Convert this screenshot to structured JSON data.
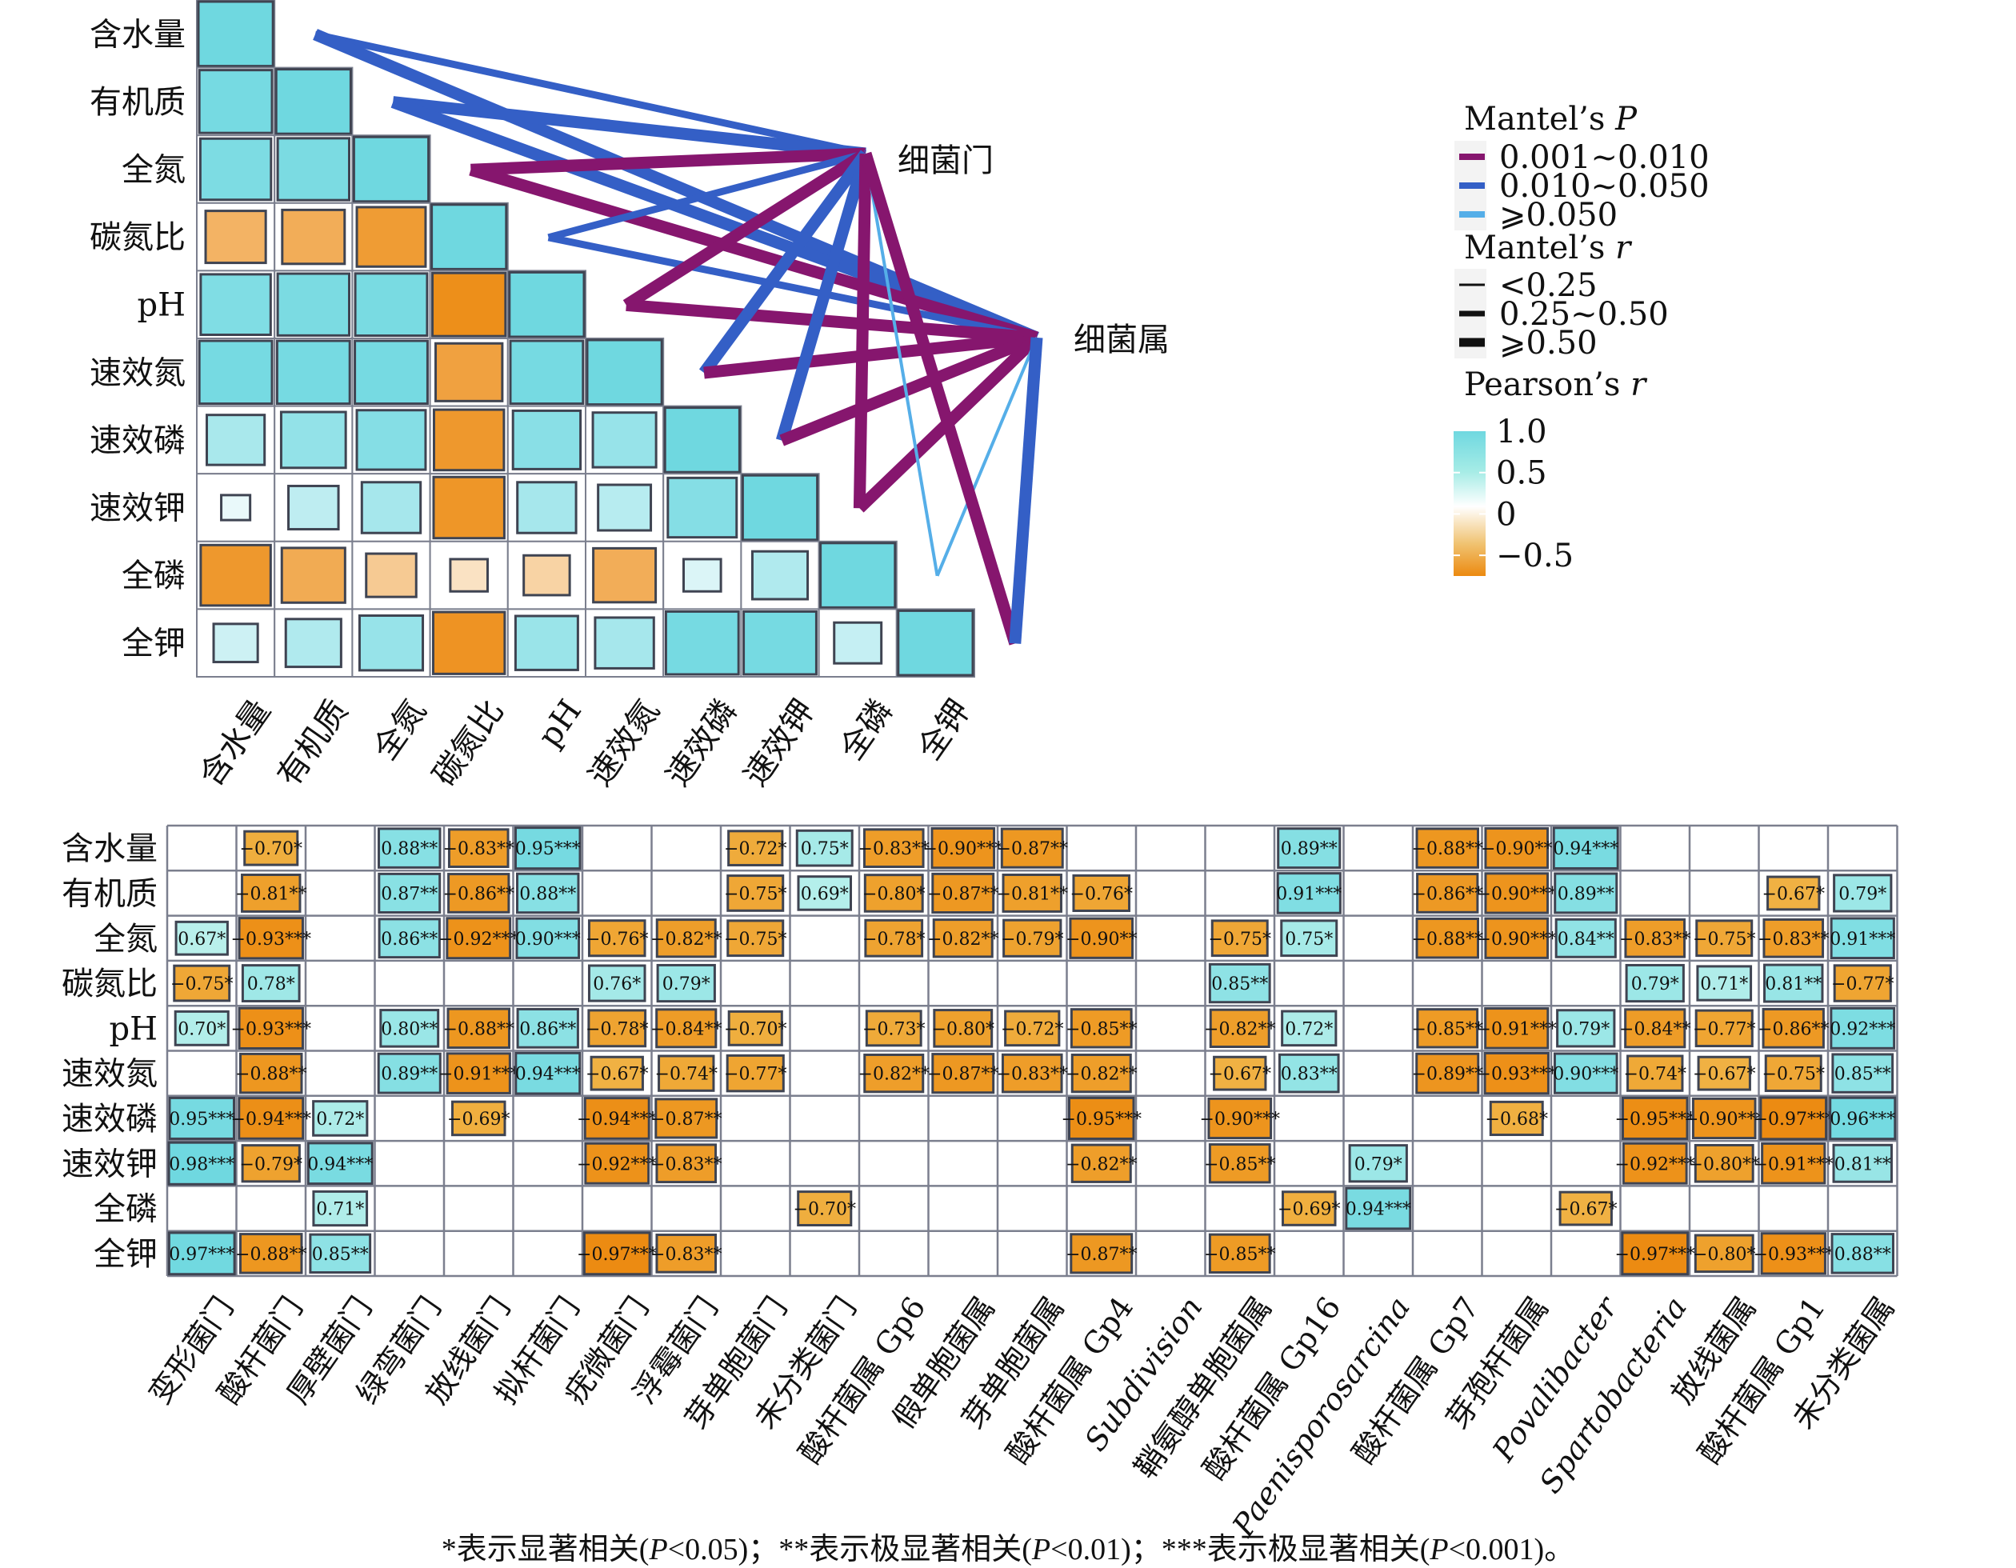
{
  "chart_data": [
    {
      "type": "heatmap",
      "subtype": "mantel-test-correlation-triangle",
      "variables": [
        "含水量",
        "有机质",
        "全氮",
        "碳氮比",
        "pH",
        "速效氮",
        "速效磷",
        "速效钾",
        "全磷",
        "全钾"
      ],
      "pearson_lower_triangle": [
        [
          1.0
        ],
        [
          0.95,
          1.0
        ],
        [
          0.9,
          0.92,
          1.0
        ],
        [
          -0.65,
          -0.7,
          -0.85,
          1.0
        ],
        [
          0.88,
          0.92,
          0.93,
          -0.96,
          1.0
        ],
        [
          0.95,
          0.95,
          0.95,
          -0.8,
          0.95,
          1.0
        ],
        [
          0.6,
          0.75,
          0.85,
          -0.88,
          0.82,
          0.72,
          1.0
        ],
        [
          0.15,
          0.45,
          0.62,
          -0.9,
          0.62,
          0.5,
          0.85,
          1.0
        ],
        [
          -0.88,
          -0.72,
          -0.45,
          -0.25,
          -0.38,
          -0.7,
          0.25,
          0.55,
          1.0
        ],
        [
          0.35,
          0.55,
          0.72,
          -0.92,
          0.7,
          0.62,
          0.95,
          0.95,
          0.4,
          1.0
        ]
      ],
      "mantel_targets": [
        "细菌门",
        "细菌属"
      ],
      "mantel_links": [
        {
          "from": "含水量",
          "to": "细菌门",
          "p_class": "0.010~0.050",
          "r_class": "0.25~0.50"
        },
        {
          "from": "含水量",
          "to": "细菌属",
          "p_class": "0.010~0.050",
          "r_class": ">=0.50"
        },
        {
          "from": "有机质",
          "to": "细菌门",
          "p_class": "0.010~0.050",
          "r_class": ">=0.50"
        },
        {
          "from": "有机质",
          "to": "细菌属",
          "p_class": "0.010~0.050",
          "r_class": ">=0.50"
        },
        {
          "from": "全氮",
          "to": "细菌门",
          "p_class": "0.001~0.010",
          "r_class": ">=0.50"
        },
        {
          "from": "全氮",
          "to": "细菌属",
          "p_class": "0.001~0.010",
          "r_class": ">=0.50"
        },
        {
          "from": "碳氮比",
          "to": "细菌门",
          "p_class": "0.010~0.050",
          "r_class": "0.25~0.50"
        },
        {
          "from": "碳氮比",
          "to": "细菌属",
          "p_class": "0.010~0.050",
          "r_class": "0.25~0.50"
        },
        {
          "from": "pH",
          "to": "细菌门",
          "p_class": "0.001~0.010",
          "r_class": ">=0.50"
        },
        {
          "from": "pH",
          "to": "细菌属",
          "p_class": "0.001~0.010",
          "r_class": ">=0.50"
        },
        {
          "from": "速效氮",
          "to": "细菌门",
          "p_class": "0.010~0.050",
          "r_class": ">=0.50"
        },
        {
          "from": "速效氮",
          "to": "细菌属",
          "p_class": "0.001~0.010",
          "r_class": ">=0.50"
        },
        {
          "from": "速效磷",
          "to": "细菌门",
          "p_class": "0.010~0.050",
          "r_class": ">=0.50"
        },
        {
          "from": "速效磷",
          "to": "细菌属",
          "p_class": "0.001~0.010",
          "r_class": ">=0.50"
        },
        {
          "from": "速效钾",
          "to": "细菌门",
          "p_class": "0.001~0.010",
          "r_class": ">=0.50"
        },
        {
          "from": "速效钾",
          "to": "细菌属",
          "p_class": "0.001~0.010",
          "r_class": ">=0.50"
        },
        {
          "from": "全磷",
          "to": "细菌门",
          "p_class": ">=0.050",
          "r_class": "<0.25"
        },
        {
          "from": "全磷",
          "to": "细菌属",
          "p_class": ">=0.050",
          "r_class": "<0.25"
        },
        {
          "from": "全钾",
          "to": "细菌门",
          "p_class": "0.001~0.010",
          "r_class": ">=0.50"
        },
        {
          "from": "全钾",
          "to": "细菌属",
          "p_class": "0.010~0.050",
          "r_class": ">=0.50"
        }
      ],
      "legend": {
        "mantel_p": {
          "title_prefix": "Mantel’s ",
          "title_italic": "P",
          "items": [
            {
              "label": "0.001~0.010",
              "key": "0.001~0.010",
              "color": "#86166e"
            },
            {
              "label": "0.010~0.050",
              "key": "0.010~0.050",
              "color": "#345fc6"
            },
            {
              "label": "⩾0.050",
              "key": ">=0.050",
              "color": "#55aee8"
            }
          ]
        },
        "mantel_r": {
          "title_prefix": "Mantel’s ",
          "title_italic": "r",
          "items": [
            {
              "label": "<0.25",
              "key": "<0.25"
            },
            {
              "label": "0.25~0.50",
              "key": "0.25~0.50"
            },
            {
              "label": "⩾0.50",
              "key": ">=0.50"
            }
          ]
        },
        "pearson": {
          "title_prefix": "Pearson’s ",
          "title_italic": "r",
          "ticks": [
            {
              "value": 1.0,
              "label": "1.0"
            },
            {
              "value": 0.5,
              "label": "0.5"
            },
            {
              "value": 0,
              "label": "0"
            },
            {
              "value": -0.5,
              "label": "−0.5"
            }
          ],
          "range": [
            -0.75,
            1.0
          ],
          "color_positive": "#6fd8e0",
          "color_zero": "#ffffff",
          "color_negative": "#ec8a10"
        }
      }
    },
    {
      "type": "heatmap",
      "subtype": "significant-correlation-matrix",
      "rows": [
        "含水量",
        "有机质",
        "全氮",
        "碳氮比",
        "pH",
        "速效氮",
        "速效磷",
        "速效钾",
        "全磷",
        "全钾"
      ],
      "columns": [
        {
          "label": "变形菌门",
          "italic": false
        },
        {
          "label": "酸杆菌门",
          "italic": false
        },
        {
          "label": "厚壁菌门",
          "italic": false
        },
        {
          "label": "绿弯菌门",
          "italic": false
        },
        {
          "label": "放线菌门",
          "italic": false
        },
        {
          "label": "拟杆菌门",
          "italic": false
        },
        {
          "label": "疣微菌门",
          "italic": false
        },
        {
          "label": "浮霉菌门",
          "italic": false
        },
        {
          "label": "芽单胞菌门",
          "italic": false
        },
        {
          "label": "未分类菌门",
          "italic": false
        },
        {
          "label": "酸杆菌属 Gp6",
          "italic": false
        },
        {
          "label": "假单胞菌属",
          "italic": false
        },
        {
          "label": "芽单胞菌属",
          "italic": false
        },
        {
          "label": "酸杆菌属 Gp4",
          "italic": false
        },
        {
          "label": "Subdivision",
          "italic": true
        },
        {
          "label": "鞘氨醇单胞菌属",
          "italic": false
        },
        {
          "label": "酸杆菌属 Gp16",
          "italic": false
        },
        {
          "label": "Paenisporosarcina",
          "italic": true
        },
        {
          "label": "酸杆菌属 Gp7",
          "italic": false
        },
        {
          "label": "芽孢杆菌属",
          "italic": false
        },
        {
          "label": "Povalibacter",
          "italic": true
        },
        {
          "label": "Spartobacteria",
          "italic": true
        },
        {
          "label": "放线菌属",
          "italic": false
        },
        {
          "label": "酸杆菌属 Gp1",
          "italic": false
        },
        {
          "label": "未分类菌属",
          "italic": false
        }
      ],
      "cells": [
        [
          null,
          "-0.70*",
          null,
          "0.88**",
          "-0.83**",
          "0.95***",
          null,
          null,
          "-0.72*",
          "0.75*",
          "-0.83**",
          "-0.90***",
          "-0.87**",
          null,
          null,
          null,
          "0.89**",
          null,
          "-0.88**",
          "-0.90**",
          "0.94***",
          null,
          null,
          null,
          null
        ],
        [
          null,
          "-0.81**",
          null,
          "0.87**",
          "-0.86**",
          "0.88**",
          null,
          null,
          "-0.75*",
          "0.69*",
          "-0.80*",
          "-0.87**",
          "-0.81**",
          "-0.76*",
          null,
          null,
          "0.91***",
          null,
          "-0.86**",
          "-0.90***",
          "0.89**",
          null,
          null,
          "-0.67*",
          "0.79*"
        ],
        [
          "0.67*",
          "-0.93***",
          null,
          "0.86**",
          "-0.92***",
          "0.90***",
          "-0.76*",
          "-0.82**",
          "-0.75*",
          null,
          "-0.78*",
          "-0.82**",
          "-0.79*",
          "-0.90**",
          null,
          "-0.75*",
          "0.75*",
          null,
          "-0.88**",
          "-0.90***",
          "0.84**",
          "-0.83**",
          "-0.75*",
          "-0.83**",
          "0.91***"
        ],
        [
          "-0.75*",
          "0.78*",
          null,
          null,
          null,
          null,
          "0.76*",
          "0.79*",
          null,
          null,
          null,
          null,
          null,
          null,
          null,
          "0.85**",
          null,
          null,
          null,
          null,
          null,
          "0.79*",
          "0.71*",
          "0.81**",
          "-0.77*"
        ],
        [
          "0.70*",
          "-0.93***",
          null,
          "0.80**",
          "-0.88**",
          "0.86**",
          "-0.78*",
          "-0.84**",
          "-0.70*",
          null,
          "-0.73*",
          "-0.80*",
          "-0.72*",
          "-0.85**",
          null,
          "-0.82**",
          "0.72*",
          null,
          "-0.85**",
          "-0.91***",
          "0.79*",
          "-0.84**",
          "-0.77*",
          "-0.86**",
          "0.92***"
        ],
        [
          null,
          "-0.88**",
          null,
          "0.89**",
          "-0.91***",
          "0.94***",
          "-0.67*",
          "-0.74*",
          "-0.77*",
          null,
          "-0.82**",
          "-0.87**",
          "-0.83**",
          "-0.82**",
          null,
          "-0.67*",
          "0.83**",
          null,
          "-0.89**",
          "-0.93***",
          "0.90***",
          "-0.74*",
          "-0.67*",
          "-0.75*",
          "0.85**"
        ],
        [
          "0.95***",
          "-0.94***",
          "0.72*",
          null,
          "-0.69*",
          null,
          "-0.94***",
          "-0.87**",
          null,
          null,
          null,
          null,
          null,
          "-0.95***",
          null,
          "-0.90***",
          null,
          null,
          null,
          "-0.68*",
          null,
          "-0.95***",
          "-0.90***",
          "-0.97***",
          "0.96***"
        ],
        [
          "0.98***",
          "-0.79*",
          "0.94***",
          null,
          null,
          null,
          "-0.92***",
          "-0.83**",
          null,
          null,
          null,
          null,
          null,
          "-0.82**",
          null,
          "-0.85**",
          null,
          "0.79*",
          null,
          null,
          null,
          "-0.92***",
          "-0.80**",
          "-0.91***",
          "0.81**"
        ],
        [
          null,
          null,
          "0.71*",
          null,
          null,
          null,
          null,
          null,
          null,
          "-0.70*",
          null,
          null,
          null,
          null,
          null,
          null,
          "-0.69*",
          "0.94***",
          null,
          null,
          "-0.67*",
          null,
          null,
          null,
          null
        ],
        [
          "0.97***",
          "-0.88**",
          "0.85**",
          null,
          null,
          null,
          "-0.97***",
          "-0.83**",
          null,
          null,
          null,
          null,
          null,
          "-0.87**",
          null,
          "-0.85**",
          null,
          null,
          null,
          null,
          null,
          "-0.97***",
          "-0.80*",
          "-0.93***",
          "0.88**"
        ]
      ]
    }
  ],
  "footnote": "*表示显著相关(P<0.05)；**表示极显著相关(P<0.01)；***表示极显著相关(P<0.001)。",
  "footnote_parts": {
    "a": "*表示显著相关(",
    "p1": "P",
    "b": "<0.05)；**表示极显著相关(",
    "p2": "P",
    "c": "<0.01)；***表示极显著相关(",
    "p3": "P",
    "d": "<0.001)。"
  }
}
